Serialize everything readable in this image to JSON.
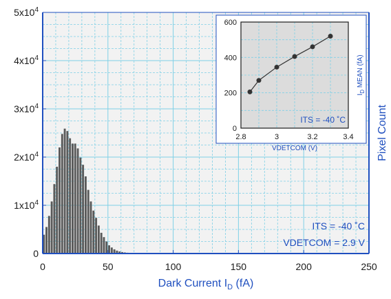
{
  "chart_data": [
    {
      "type": "bar",
      "title": "",
      "xlabel": "Dark Current I",
      "xlabel_sub": "D",
      "xlabel_unit": " (fA)",
      "ylabel": "Pixel Count",
      "xlim": [
        0,
        250
      ],
      "ylim": [
        0,
        50000
      ],
      "x_ticks": [
        "0",
        "50",
        "100",
        "150",
        "200",
        "250"
      ],
      "y_ticks": [
        {
          "base": "0",
          "exp": ""
        },
        {
          "base": "1x10",
          "exp": "4"
        },
        {
          "base": "2x10",
          "exp": "4"
        },
        {
          "base": "3x10",
          "exp": "4"
        },
        {
          "base": "4x10",
          "exp": "4"
        },
        {
          "base": "5x10",
          "exp": "4"
        }
      ],
      "grid": true,
      "bin_width": 2,
      "bin_start": 0,
      "values": [
        3900,
        5500,
        7800,
        10800,
        14400,
        18000,
        22000,
        24800,
        25900,
        25400,
        23900,
        22800,
        22800,
        21800,
        19900,
        18400,
        16000,
        13200,
        10800,
        8900,
        7400,
        5800,
        4300,
        3400,
        2500,
        1700,
        1250,
        870,
        600,
        430,
        300,
        220,
        160,
        110,
        80,
        60,
        40,
        30,
        20,
        15,
        10,
        8,
        6,
        4,
        3
      ],
      "annotations": [
        "ITS = -40 ˚C",
        "VDETCOM = 2.9 V"
      ],
      "colors": {
        "bar": "#5a5a5a",
        "plot_bg": "#f2f2f2",
        "axis": "#1f4fbf",
        "grid": "#7fd0e6"
      }
    },
    {
      "type": "line",
      "title": "",
      "xlabel": "VDETCOM (V)",
      "ylabel_prefix": "I",
      "ylabel_sub": "D",
      "ylabel_rest": " MEAN (fA)",
      "xlim": [
        2.8,
        3.4
      ],
      "ylim": [
        0,
        600
      ],
      "x_ticks": [
        "2.8",
        "3",
        "3.2",
        "3.4"
      ],
      "x_tick_values": [
        2.8,
        3.0,
        3.2,
        3.4
      ],
      "y_ticks": [
        "0",
        "200",
        "400",
        "600"
      ],
      "y_tick_values": [
        0,
        200,
        400,
        600
      ],
      "x": [
        2.85,
        2.9,
        3.0,
        3.1,
        3.2,
        3.3
      ],
      "y": [
        205,
        270,
        345,
        405,
        460,
        520
      ],
      "grid": true,
      "annotation": "ITS = -40 ˚C",
      "colors": {
        "line": "#333333",
        "plot_bg": "#dcdcdc",
        "axis": "#1f4fbf",
        "grid": "#7fd0e6"
      }
    }
  ]
}
